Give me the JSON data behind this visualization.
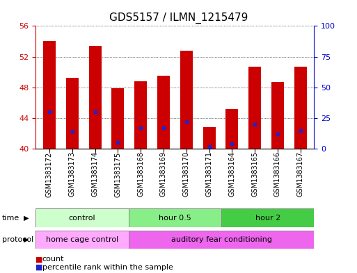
{
  "title": "GDS5157 / ILMN_1215479",
  "samples": [
    "GSM1383172",
    "GSM1383173",
    "GSM1383174",
    "GSM1383175",
    "GSM1383168",
    "GSM1383169",
    "GSM1383170",
    "GSM1383171",
    "GSM1383164",
    "GSM1383165",
    "GSM1383166",
    "GSM1383167"
  ],
  "counts": [
    54.0,
    49.2,
    53.4,
    47.9,
    48.8,
    49.5,
    52.8,
    42.8,
    45.2,
    50.7,
    48.7,
    50.7
  ],
  "percentiles": [
    30,
    14,
    30,
    5,
    17,
    17,
    22,
    2,
    4,
    20,
    12,
    15
  ],
  "ylim_left": [
    40,
    56
  ],
  "ylim_right": [
    0,
    100
  ],
  "yticks_left": [
    40,
    44,
    48,
    52,
    56
  ],
  "yticks_right": [
    0,
    25,
    50,
    75,
    100
  ],
  "bar_color": "#cc0000",
  "dot_color": "#2222cc",
  "bar_width": 0.55,
  "time_groups": [
    {
      "label": "control",
      "start": 0,
      "end": 4,
      "color": "#ccffcc"
    },
    {
      "label": "hour 0.5",
      "start": 4,
      "end": 8,
      "color": "#88ee88"
    },
    {
      "label": "hour 2",
      "start": 8,
      "end": 12,
      "color": "#44cc44"
    }
  ],
  "protocol_groups": [
    {
      "label": "home cage control",
      "start": 0,
      "end": 4,
      "color": "#ffaaff"
    },
    {
      "label": "auditory fear conditioning",
      "start": 4,
      "end": 12,
      "color": "#ee66ee"
    }
  ],
  "time_label": "time",
  "protocol_label": "protocol",
  "left_axis_color": "#cc0000",
  "right_axis_color": "#0000cc",
  "grid_color": "#000000",
  "bg_color": "#ffffff",
  "title_fontsize": 11,
  "tick_label_fontsize": 7,
  "row_label_fontsize": 8,
  "group_label_fontsize": 8,
  "legend_fontsize": 8
}
